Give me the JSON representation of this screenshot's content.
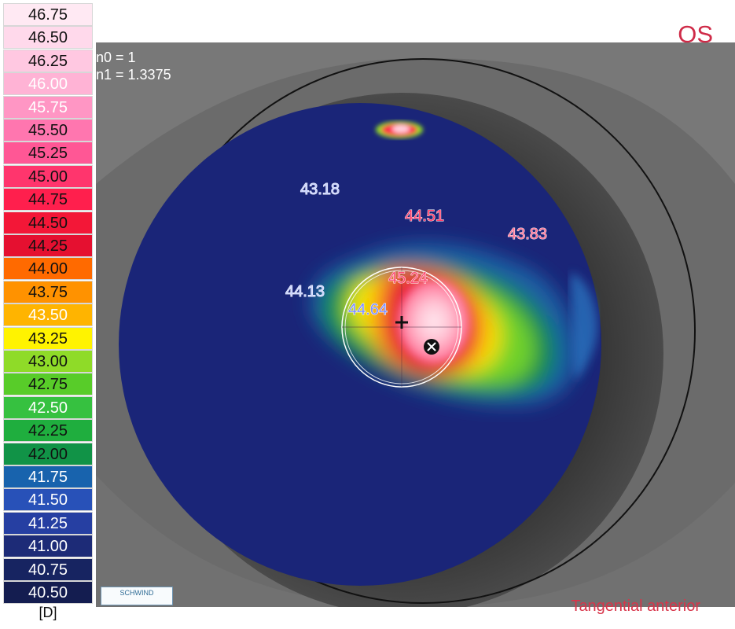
{
  "header": {
    "eye": "OS"
  },
  "settings": {
    "n0": "n0 = 1",
    "n1": "n1 = 1.3375"
  },
  "scale": {
    "unit": "[D]",
    "items": [
      {
        "value": "46.75",
        "color": "#ffe9f3"
      },
      {
        "value": "46.50",
        "color": "#ffd9eb"
      },
      {
        "value": "46.25",
        "color": "#ffc8e1"
      },
      {
        "value": "46.00",
        "color": "#ffb3d5"
      },
      {
        "value": "45.75",
        "color": "#ff96c4"
      },
      {
        "value": "45.50",
        "color": "#ff76af"
      },
      {
        "value": "45.25",
        "color": "#ff5795"
      },
      {
        "value": "45.00",
        "color": "#ff356d"
      },
      {
        "value": "44.75",
        "color": "#ff1f4d"
      },
      {
        "value": "44.50",
        "color": "#f31737"
      },
      {
        "value": "44.25",
        "color": "#e51030"
      },
      {
        "value": "44.00",
        "color": "#ff6a00"
      },
      {
        "value": "43.75",
        "color": "#ff9200"
      },
      {
        "value": "43.50",
        "color": "#ffb400"
      },
      {
        "value": "43.25",
        "color": "#fff300"
      },
      {
        "value": "43.00",
        "color": "#8fdb28"
      },
      {
        "value": "42.75",
        "color": "#58cc29"
      },
      {
        "value": "42.50",
        "color": "#36c140"
      },
      {
        "value": "42.25",
        "color": "#1fae3e"
      },
      {
        "value": "42.00",
        "color": "#119347"
      },
      {
        "value": "41.75",
        "color": "#1863ad"
      },
      {
        "value": "41.50",
        "color": "#2851b8"
      },
      {
        "value": "41.25",
        "color": "#263fa2"
      },
      {
        "value": "41.00",
        "color": "#1d2b77"
      },
      {
        "value": "40.75",
        "color": "#172461"
      },
      {
        "value": "40.50",
        "color": "#141d50"
      }
    ]
  },
  "map_labels": [
    {
      "value": "43.18",
      "color": "#c9d3ff"
    },
    {
      "value": "44.51",
      "color": "#ff3c68"
    },
    {
      "value": "43.83",
      "color": "#ff6f93"
    },
    {
      "value": "45.24",
      "color": "#ff4b73"
    },
    {
      "value": "44.13",
      "color": "#c9d3ff"
    },
    {
      "value": "44.64",
      "color": "#7e8fff"
    }
  ],
  "footer": {
    "map_type": "Tangential anterior",
    "logo": "SCHWIND"
  }
}
